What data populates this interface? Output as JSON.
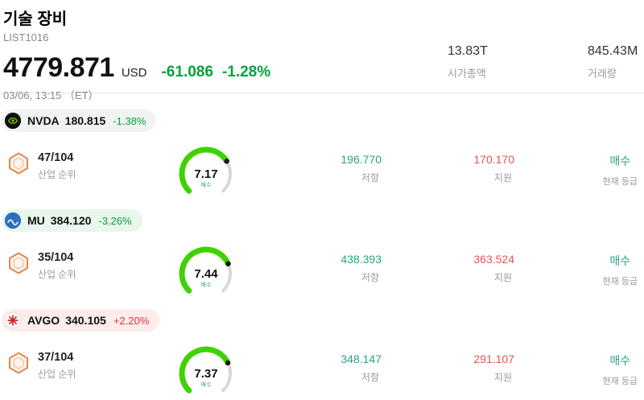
{
  "header": {
    "title": "기술 장비",
    "list_id": "LIST1016",
    "price": "4779.871",
    "currency": "USD",
    "change_value": "-61.086",
    "change_percent": "-1.28%",
    "datetime": "03/06, 13:15 （ET）",
    "stats": [
      {
        "value": "13.83T",
        "label": "시가총액"
      },
      {
        "value": "845.43M",
        "label": "거래량"
      }
    ]
  },
  "labels": {
    "industry_rank": "산업 순위",
    "resistance": "저항",
    "support": "지원",
    "current_rating": "현재 등급"
  },
  "colors": {
    "down_green": "#00a43c",
    "up_red": "#e0352c",
    "teal": "#2aa286",
    "support_red": "#e25550",
    "gauge_green": "#3fd200",
    "muted": "#999999"
  },
  "stocks": [
    {
      "symbol": "NVDA",
      "price": "180.815",
      "change_percent": "-1.38%",
      "rank": "47/104",
      "gauge": {
        "value": 7.17,
        "max": 10,
        "label": "매수"
      },
      "resistance": "196.770",
      "support": "170.170",
      "rating": "매수"
    },
    {
      "symbol": "MU",
      "price": "384.120",
      "change_percent": "-3.26%",
      "rank": "35/104",
      "gauge": {
        "value": 7.44,
        "max": 10,
        "label": "매수"
      },
      "resistance": "438.393",
      "support": "363.524",
      "rating": "매수"
    },
    {
      "symbol": "AVGO",
      "price": "340.105",
      "change_percent": "+2.20%",
      "rank": "37/104",
      "gauge": {
        "value": 7.37,
        "max": 10,
        "label": "매수"
      },
      "resistance": "348.147",
      "support": "291.107",
      "rating": "매수"
    }
  ]
}
